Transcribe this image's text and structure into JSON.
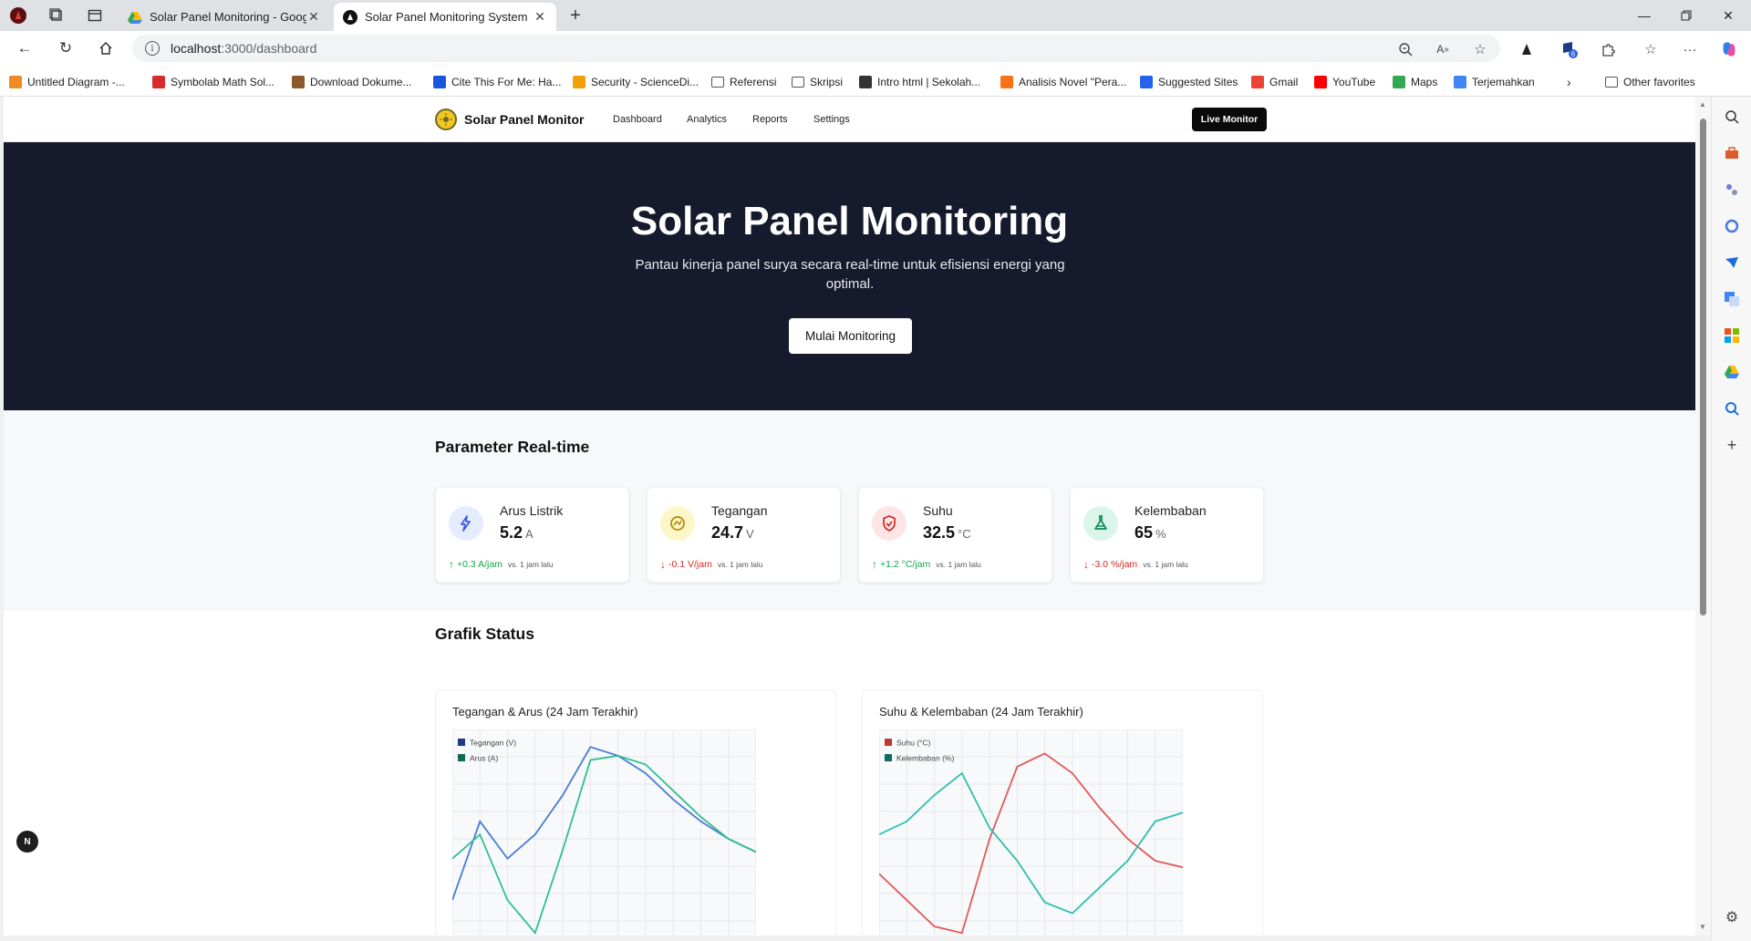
{
  "browser": {
    "tabs": [
      {
        "title": "Solar Panel Monitoring - Google D",
        "active": false
      },
      {
        "title": "Solar Panel Monitoring System",
        "active": true
      }
    ],
    "new_tab": "+",
    "url_host": "localhost",
    "url_path": ":3000/dashboard",
    "bookmarks": [
      {
        "label": "Untitled Diagram -...",
        "color": "#f08a24"
      },
      {
        "label": "Symbolab Math Sol...",
        "color": "#d92b2b"
      },
      {
        "label": "Download Dokume...",
        "color": "#8b5a2b"
      },
      {
        "label": "Cite This For Me: Ha...",
        "color": "#1a56db"
      },
      {
        "label": "Security - ScienceDi...",
        "color": "#f59e0b"
      },
      {
        "label": "Referensi",
        "color": "folder"
      },
      {
        "label": "Skripsi",
        "color": "folder"
      },
      {
        "label": "Intro html | Sekolah...",
        "color": "#333333"
      },
      {
        "label": "Analisis Novel \"Pera...",
        "color": "#f97316"
      },
      {
        "label": "Suggested Sites",
        "color": "#2563eb"
      },
      {
        "label": "Gmail",
        "color": "#ea4335"
      },
      {
        "label": "YouTube",
        "color": "#ff0000"
      },
      {
        "label": "Maps",
        "color": "#34a853"
      },
      {
        "label": "Terjemahkan",
        "color": "#4285f4"
      }
    ],
    "other_favorites": "Other favorites",
    "extension_badge": "6"
  },
  "site": {
    "brand": "Solar Panel Monitor",
    "nav": [
      "Dashboard",
      "Analytics",
      "Reports",
      "Settings"
    ],
    "live_button": "Live Monitor"
  },
  "hero": {
    "title": "Solar Panel Monitoring",
    "subtitle": "Pantau kinerja panel surya secara real-time untuk efisiensi energi yang optimal.",
    "button": "Mulai Monitoring"
  },
  "parameters": {
    "title": "Parameter Real-time",
    "cards": [
      {
        "label": "Arus Listrik",
        "value": "5.2",
        "unit": "A",
        "change": "+0.3 A/jam",
        "direction": "up",
        "vs": "vs. 1 jam lalu",
        "icon": "lightning-icon",
        "icon_bg": "#e6ecff",
        "icon_color": "#3b5bdb"
      },
      {
        "label": "Tegangan",
        "value": "24.7",
        "unit": "V",
        "change": "-0.1 V/jam",
        "direction": "down",
        "vs": "vs. 1 jam lalu",
        "icon": "gauge-icon",
        "icon_bg": "#fdf6c8",
        "icon_color": "#b08900"
      },
      {
        "label": "Suhu",
        "value": "32.5",
        "unit": "°C",
        "change": "+1.2 °C/jam",
        "direction": "up",
        "vs": "vs. 1 jam lalu",
        "icon": "shield-icon",
        "icon_bg": "#fde5e5",
        "icon_color": "#c92a2a"
      },
      {
        "label": "Kelembaban",
        "value": "65",
        "unit": "%",
        "change": "-3.0 %/jam",
        "direction": "down",
        "vs": "vs. 1 jam lalu",
        "icon": "flask-icon",
        "icon_bg": "#dcf5ea",
        "icon_color": "#0f8a5f"
      }
    ]
  },
  "charts_section": {
    "title": "Grafik Status"
  },
  "chart_data": [
    {
      "type": "line",
      "title": "Tegangan & Arus (24 Jam Terakhir)",
      "x": [
        0,
        1,
        2,
        3,
        4,
        5,
        6,
        7,
        8,
        9,
        10,
        11
      ],
      "ylim": [
        0,
        100
      ],
      "series": [
        {
          "name": "Tegangan (V)",
          "color": "#4a7bd8",
          "values": [
            22,
            58,
            41,
            52,
            70,
            92,
            88,
            80,
            68,
            58,
            50,
            44
          ]
        },
        {
          "name": "Arus (A)",
          "color": "#2fbf8f",
          "values": [
            41,
            52,
            22,
            7,
            45,
            86,
            88,
            84,
            72,
            60,
            50,
            44
          ]
        }
      ],
      "grid": true,
      "legend": "top-left"
    },
    {
      "type": "line",
      "title": "Suhu & Kelembaban (24 Jam Terakhir)",
      "x": [
        0,
        1,
        2,
        3,
        4,
        5,
        6,
        7,
        8,
        9,
        10,
        11
      ],
      "ylim": [
        0,
        100
      ],
      "series": [
        {
          "name": "Suhu (°C)",
          "color": "#e45858",
          "values": [
            34,
            22,
            10,
            7,
            50,
            83,
            89,
            80,
            64,
            50,
            40,
            37
          ]
        },
        {
          "name": "Kelembaban (%)",
          "color": "#2fbfb0",
          "values": [
            52,
            58,
            70,
            80,
            55,
            40,
            21,
            16,
            28,
            40,
            58,
            62
          ]
        }
      ],
      "grid": true,
      "legend": "top-left"
    }
  ],
  "badge": "N"
}
